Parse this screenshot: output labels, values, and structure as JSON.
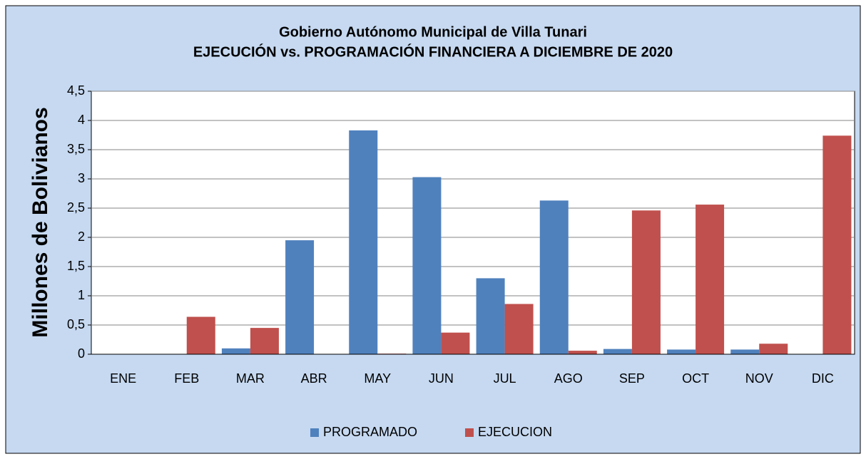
{
  "chart_data": {
    "type": "bar",
    "title": "Gobierno Autónomo Municipal de Villa Tunari",
    "subtitle": "EJECUCIÓN vs. PROGRAMACIÓN FINANCIERA A DICIEMBRE DE 2020",
    "y_label": "Millones de Bolivianos",
    "categories": [
      "ENE",
      "FEB",
      "MAR",
      "ABR",
      "MAY",
      "JUN",
      "JUL",
      "AGO",
      "SEP",
      "OCT",
      "NOV",
      "DIC"
    ],
    "series": [
      {
        "name": "PROGRAMADO",
        "color": "#4f81bd",
        "values": [
          0,
          0,
          0.1,
          1.95,
          3.83,
          3.03,
          1.3,
          2.63,
          0.09,
          0.08,
          0.08,
          0
        ]
      },
      {
        "name": "EJECUCION",
        "color": "#c0504d",
        "values": [
          0,
          0.64,
          0.45,
          0,
          0.01,
          0.37,
          0.86,
          0.06,
          2.46,
          2.56,
          0.18,
          3.74
        ]
      }
    ],
    "ylim": [
      0,
      4.5
    ],
    "yticks": [
      0,
      {
        "value": 0.5,
        "label": "0,5"
      },
      1,
      {
        "value": 1.5,
        "label": "1,5"
      },
      2,
      {
        "value": 2.5,
        "label": "2,5"
      },
      3,
      {
        "value": 3.5,
        "label": "3,5"
      },
      4,
      {
        "value": 4.5,
        "label": "4,5"
      }
    ],
    "grid": true,
    "legend": "bottom"
  }
}
